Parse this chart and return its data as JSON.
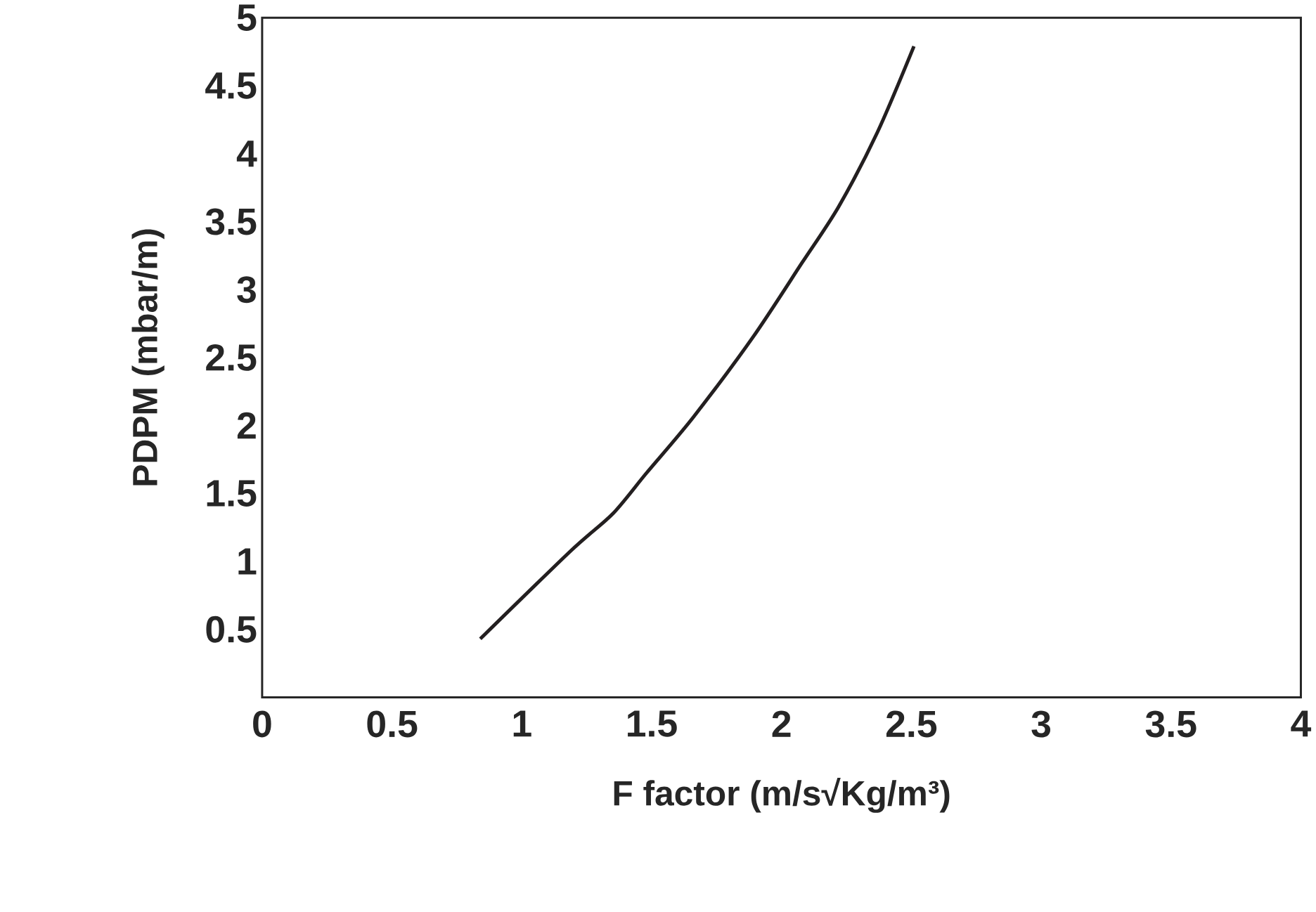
{
  "chart_data": {
    "type": "line",
    "xlabel": "F factor (m/s√Kg/m³)",
    "ylabel": "PDPM (mbar/m)",
    "xlim": [
      0,
      4
    ],
    "ylim": [
      0,
      5
    ],
    "xticks": [
      0,
      0.5,
      1,
      1.5,
      2,
      2.5,
      3,
      3.5,
      4
    ],
    "yticks": [
      0.5,
      1,
      1.5,
      2,
      2.5,
      3,
      3.5,
      4,
      4.5,
      5
    ],
    "grid": false,
    "marker": "none",
    "line_style": "solid",
    "series": [
      {
        "color": "#231f20",
        "x": [
          0.84,
          1.19,
          1.35,
          1.48,
          1.66,
          1.89,
          2.08,
          2.22,
          2.37,
          2.51
        ],
        "values": [
          0.43,
          1.08,
          1.35,
          1.65,
          2.06,
          2.65,
          3.2,
          3.61,
          4.16,
          4.79
        ]
      }
    ]
  }
}
